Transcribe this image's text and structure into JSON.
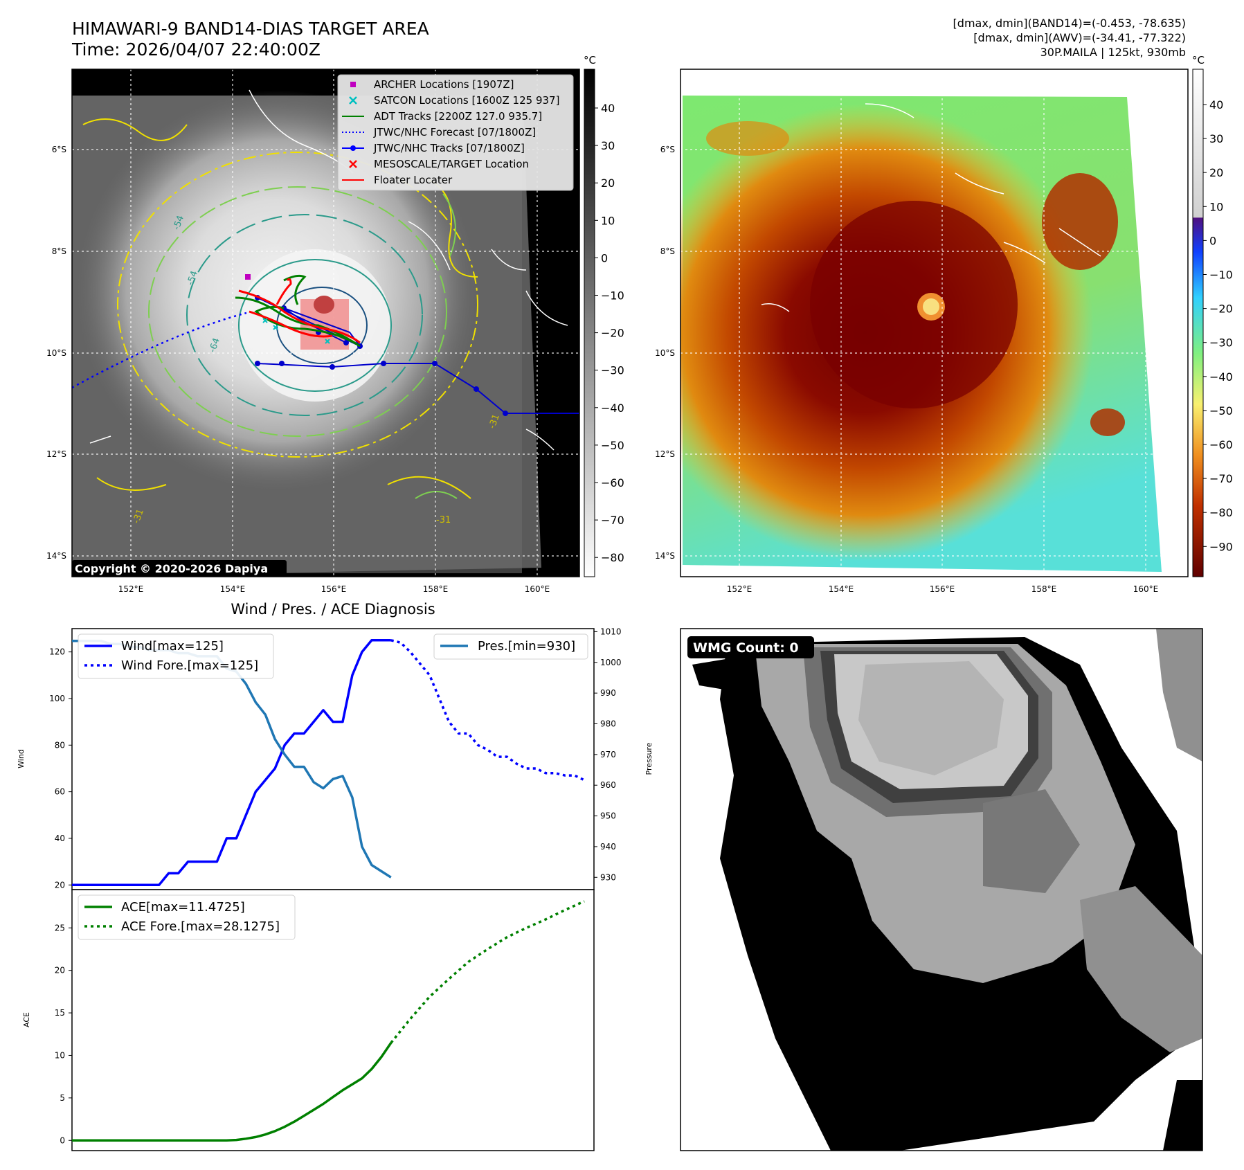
{
  "header": {
    "title_line1": "HIMAWARI-9 BAND14-DIAS TARGET AREA",
    "title_line2": "Time: 2026/04/07 22:40:00Z",
    "info_line1": "[dmax, dmin](BAND14)=(-0.453, -78.635)",
    "info_line2": "[dmax, dmin](AWV)=(-34.41, -77.322)",
    "info_line3": "30P.MAILA | 125kt, 930mb"
  },
  "panel_ir": {
    "colorbar_unit": "°C",
    "colorbar_ticks": [
      "40",
      "30",
      "20",
      "10",
      "0",
      "−10",
      "−20",
      "−30",
      "−40",
      "−50",
      "−60",
      "−70",
      "−80"
    ],
    "lat_labels": [
      "6°S",
      "8°S",
      "10°S",
      "12°S",
      "14°S"
    ],
    "lon_labels": [
      "152°E",
      "154°E",
      "156°E",
      "158°E",
      "160°E"
    ],
    "copyright": "Copyright © 2020-2026 Dapiya",
    "contour_labels": [
      "-54",
      "-54",
      "-64",
      "-31",
      "-31",
      "-31"
    ],
    "legend": [
      {
        "label": "ARCHER Locations [1907Z]",
        "color": "#c000c0",
        "marker": "square"
      },
      {
        "label": "SATCON Locations [1600Z 125 937]",
        "color": "#00c0c0",
        "marker": "x"
      },
      {
        "label": "ADT Tracks [2200Z 127.0 935.7]",
        "color": "#008000",
        "marker": "line"
      },
      {
        "label": "JTWC/NHC Forecast [07/1800Z]",
        "color": "#0000ff",
        "marker": "dotted"
      },
      {
        "label": "JTWC/NHC Tracks [07/1800Z]",
        "color": "#0000ff",
        "marker": "line-dot"
      },
      {
        "label": "MESOSCALE/TARGET Location",
        "color": "#ff0000",
        "marker": "x"
      },
      {
        "label": "Floater Locater",
        "color": "#ff0000",
        "marker": "line"
      }
    ]
  },
  "panel_awv": {
    "colorbar_unit": "°C",
    "colorbar_ticks": [
      "40",
      "30",
      "20",
      "10",
      "0",
      "−10",
      "−20",
      "−30",
      "−40",
      "−50",
      "−60",
      "−70",
      "−80",
      "−90"
    ],
    "lat_labels": [
      "6°S",
      "8°S",
      "10°S",
      "12°S",
      "14°S"
    ],
    "lon_labels": [
      "152°E",
      "154°E",
      "156°E",
      "158°E",
      "160°E"
    ]
  },
  "panel_wmg": {
    "badge": "WMG Count: 0"
  },
  "chart_data": [
    {
      "type": "line",
      "title": "Wind / Pres. / ACE Diagnosis",
      "ylabel": "Wind",
      "y2label": "Pressure",
      "ylim": [
        18,
        130
      ],
      "y2lim": [
        926,
        1011
      ],
      "yticks": [
        20,
        40,
        60,
        80,
        100,
        120
      ],
      "y2ticks": [
        930,
        940,
        950,
        960,
        970,
        980,
        990,
        1000,
        1010
      ],
      "xlim": [
        0,
        54
      ],
      "series": [
        {
          "name": "Wind[max=125]",
          "color": "#0000ff",
          "style": "solid",
          "axis": "left",
          "x": [
            0,
            1,
            2,
            3,
            4,
            5,
            6,
            7,
            8,
            9,
            10,
            11,
            12,
            13,
            14,
            15,
            16,
            17,
            18,
            19,
            20,
            21,
            22,
            23,
            24,
            25,
            26,
            27,
            28,
            29,
            30,
            31,
            32,
            33
          ],
          "y": [
            20,
            20,
            20,
            20,
            20,
            20,
            20,
            20,
            20,
            20,
            25,
            25,
            30,
            30,
            30,
            30,
            40,
            40,
            50,
            60,
            65,
            70,
            80,
            85,
            85,
            90,
            95,
            90,
            90,
            110,
            120,
            125,
            125,
            125
          ]
        },
        {
          "name": "Wind Fore.[max=125]",
          "color": "#0000ff",
          "style": "dotted",
          "axis": "left",
          "x": [
            33,
            34,
            35,
            36,
            37,
            38,
            39,
            40,
            41,
            42,
            43,
            44,
            45,
            46,
            47,
            48,
            49,
            50,
            51,
            52,
            53
          ],
          "y": [
            125,
            124,
            120,
            115,
            110,
            100,
            90,
            85,
            85,
            80,
            78,
            75,
            75,
            72,
            70,
            70,
            68,
            68,
            67,
            67,
            65
          ]
        },
        {
          "name": "Pres.[min=930]",
          "color": "#1f77b4",
          "style": "solid",
          "axis": "right",
          "x": [
            0,
            1,
            2,
            3,
            4,
            5,
            6,
            7,
            8,
            9,
            10,
            11,
            12,
            13,
            14,
            15,
            16,
            17,
            18,
            19,
            20,
            21,
            22,
            23,
            24,
            25,
            26,
            27,
            28,
            29,
            30,
            31,
            32,
            33
          ],
          "y": [
            1007,
            1007,
            1007,
            1007,
            1006,
            1006,
            1005,
            1005,
            1004,
            1004,
            1004,
            1003,
            1003,
            1002,
            1002,
            1002,
            998,
            997,
            993,
            987,
            983,
            975,
            970,
            966,
            966,
            961,
            959,
            962,
            963,
            956,
            940,
            934,
            932,
            930
          ]
        }
      ]
    },
    {
      "type": "line",
      "ylabel": "ACE",
      "ylim": [
        -1.2,
        29.5
      ],
      "yticks": [
        0,
        5,
        10,
        15,
        20,
        25
      ],
      "xlim": [
        0,
        54
      ],
      "series": [
        {
          "name": "ACE[max=11.4725]",
          "color": "#008000",
          "style": "solid",
          "x": [
            0,
            2,
            4,
            6,
            8,
            10,
            12,
            14,
            16,
            17,
            18,
            19,
            20,
            21,
            22,
            23,
            24,
            25,
            26,
            27,
            28,
            29,
            30,
            31,
            32,
            33
          ],
          "y": [
            0,
            0,
            0,
            0,
            0,
            0,
            0,
            0,
            0,
            0.05,
            0.2,
            0.4,
            0.7,
            1.1,
            1.6,
            2.2,
            2.9,
            3.6,
            4.3,
            5.1,
            5.9,
            6.6,
            7.3,
            8.4,
            9.8,
            11.47
          ]
        },
        {
          "name": "ACE Fore.[max=28.1275]",
          "color": "#008000",
          "style": "dotted",
          "x": [
            33,
            35,
            37,
            39,
            41,
            43,
            45,
            47,
            49,
            51,
            53
          ],
          "y": [
            11.47,
            14.3,
            16.9,
            19.0,
            21.0,
            22.5,
            23.9,
            25.0,
            26.0,
            27.1,
            28.13
          ]
        }
      ]
    }
  ]
}
